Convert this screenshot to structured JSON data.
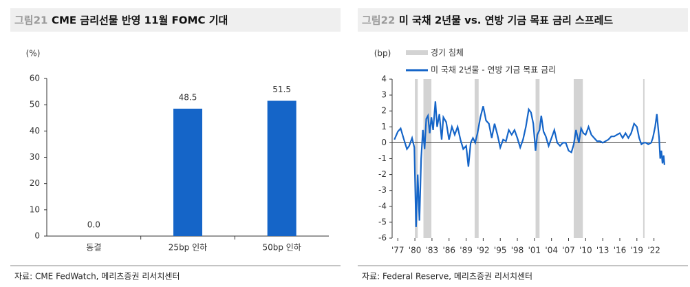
{
  "chart_data": [
    {
      "type": "bar",
      "figure_label": "그림21",
      "title": "CME 금리선물 반영 11월 FOMC 기대",
      "y_label": "(%)",
      "categories": [
        "동결",
        "25bp 인하",
        "50bp 인하"
      ],
      "values": [
        0,
        48.5,
        51.5
      ],
      "value_labels": [
        "0.0",
        "48.5",
        "51.5"
      ],
      "color": "#1565c8",
      "ylim": [
        0,
        60
      ],
      "yticks": [
        0,
        10,
        20,
        30,
        40,
        50,
        60
      ],
      "source": "자료: CME FedWatch, 메리츠증권 리서치센터"
    },
    {
      "type": "line",
      "figure_label": "그림22",
      "title": "미 국채 2년물 vs. 연방 기금 목표 금리 스프레드",
      "y_label": "(bp)",
      "recessions": {
        "name": "경기 침체",
        "color": "#d3d3d3",
        "ranges": [
          [
            1980.0,
            1980.5
          ],
          [
            1981.5,
            1982.9
          ],
          [
            1990.5,
            1991.2
          ],
          [
            2001.2,
            2001.9
          ],
          [
            2007.9,
            2009.5
          ],
          [
            2020.1,
            2020.3
          ]
        ]
      },
      "x": [
        1976.4,
        1977.0,
        1977.5,
        1978.0,
        1978.6,
        1979.0,
        1979.5,
        1979.9,
        1980.2,
        1980.5,
        1980.8,
        1981.1,
        1981.4,
        1981.7,
        1982.0,
        1982.3,
        1982.6,
        1982.9,
        1983.2,
        1983.6,
        1983.9,
        1984.3,
        1984.7,
        1985.0,
        1985.5,
        1986.0,
        1986.5,
        1987.0,
        1987.5,
        1988.0,
        1988.5,
        1989.0,
        1989.4,
        1989.8,
        1990.2,
        1990.6,
        1991.0,
        1991.5,
        1992.0,
        1992.5,
        1993.0,
        1993.5,
        1994.0,
        1994.5,
        1995.0,
        1995.5,
        1996.0,
        1996.5,
        1997.0,
        1997.5,
        1998.0,
        1998.5,
        1999.0,
        1999.5,
        2000.0,
        2000.4,
        2000.8,
        2001.2,
        2001.5,
        2001.9,
        2002.2,
        2002.6,
        2003.0,
        2003.5,
        2004.0,
        2004.5,
        2005.0,
        2005.5,
        2006.0,
        2006.5,
        2007.0,
        2007.5,
        2007.9,
        2008.3,
        2008.8,
        2009.2,
        2009.6,
        2010.0,
        2010.5,
        2011.0,
        2011.5,
        2012.0,
        2012.5,
        2013.0,
        2013.5,
        2014.0,
        2014.5,
        2015.0,
        2015.5,
        2016.0,
        2016.5,
        2017.0,
        2017.5,
        2018.0,
        2018.5,
        2019.0,
        2019.4,
        2019.8,
        2020.2,
        2020.6,
        2021.0,
        2021.5,
        2021.8,
        2022.2,
        2022.5,
        2022.9,
        2023.1,
        2023.3,
        2023.5,
        2023.7,
        2023.85
      ],
      "series": [
        {
          "name": "미 국채 2년물 - 연방 기금 목표 금리",
          "color": "#1565c8",
          "values": [
            0.2,
            0.7,
            0.9,
            0.3,
            -0.4,
            -0.2,
            0.3,
            -0.3,
            -5.3,
            -2.0,
            -4.9,
            -1.0,
            0.8,
            -0.4,
            1.5,
            1.7,
            0.6,
            1.6,
            0.8,
            2.6,
            1.0,
            1.8,
            0.2,
            1.6,
            1.3,
            0.2,
            1.0,
            0.5,
            1.0,
            0.2,
            -0.4,
            -0.2,
            -1.5,
            0.0,
            0.3,
            0.0,
            0.6,
            1.6,
            2.3,
            1.4,
            1.2,
            0.3,
            1.2,
            0.5,
            -0.3,
            0.2,
            0.1,
            0.8,
            0.5,
            0.8,
            0.3,
            -0.3,
            0.2,
            1.0,
            2.1,
            1.9,
            1.2,
            -0.5,
            0.5,
            0.8,
            1.7,
            0.7,
            0.4,
            -0.2,
            0.3,
            0.8,
            0.0,
            -0.2,
            0.0,
            0.0,
            -0.5,
            -0.6,
            -0.1,
            0.8,
            0.0,
            0.9,
            0.6,
            0.5,
            1.0,
            0.5,
            0.3,
            0.1,
            0.1,
            0.0,
            0.1,
            0.2,
            0.4,
            0.4,
            0.5,
            0.6,
            0.3,
            0.6,
            0.3,
            0.6,
            1.2,
            1.0,
            0.3,
            -0.1,
            0.0,
            0.0,
            -0.1,
            0.0,
            0.3,
            1.0,
            1.8,
            0.3,
            -1.0,
            -0.5,
            -1.3,
            -0.8,
            -1.4
          ]
        }
      ],
      "xlim": [
        1976.0,
        2024.1
      ],
      "ylim": [
        -6,
        4
      ],
      "yticks": [
        -6,
        -5,
        -4,
        -3,
        -2,
        -1,
        0,
        1,
        2,
        3,
        4
      ],
      "xticks": [
        {
          "value": 1977,
          "label": "'77"
        },
        {
          "value": 1980,
          "label": "'80"
        },
        {
          "value": 1983,
          "label": "'83"
        },
        {
          "value": 1986,
          "label": "'86"
        },
        {
          "value": 1989,
          "label": "'89"
        },
        {
          "value": 1992,
          "label": "'92"
        },
        {
          "value": 1995,
          "label": "'95"
        },
        {
          "value": 1998,
          "label": "'98"
        },
        {
          "value": 2001,
          "label": "'01"
        },
        {
          "value": 2004,
          "label": "'04"
        },
        {
          "value": 2007,
          "label": "'07"
        },
        {
          "value": 2010,
          "label": "'10"
        },
        {
          "value": 2013,
          "label": "'13"
        },
        {
          "value": 2016,
          "label": "'16"
        },
        {
          "value": 2019,
          "label": "'19"
        },
        {
          "value": 2022,
          "label": "'22"
        }
      ],
      "source": "자료: Federal Reserve, 메리츠증권 리서치센터"
    }
  ]
}
